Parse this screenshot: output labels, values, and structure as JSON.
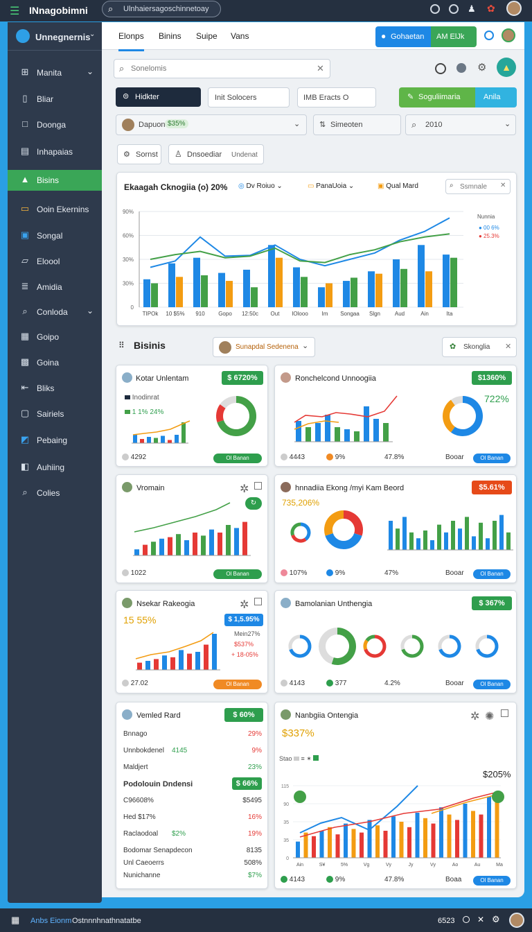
{
  "topbar": {
    "app_name": "INnagobimni",
    "search_value": "Ulnhaiersagoschinnetoay"
  },
  "sidebar": {
    "brand": "Unnegnernis",
    "items": [
      {
        "label": "Manita"
      },
      {
        "label": "Bliar"
      },
      {
        "label": "Doonga"
      },
      {
        "label": "Inhapaias"
      },
      {
        "label": "Bisins"
      },
      {
        "label": "Ooin Ekernins"
      },
      {
        "label": "Songal"
      },
      {
        "label": "Eloool"
      },
      {
        "label": "Amidia"
      },
      {
        "label": "Conloda"
      },
      {
        "label": "Goipo"
      },
      {
        "label": "Goina"
      },
      {
        "label": "Bliks"
      },
      {
        "label": "Sairiels"
      },
      {
        "label": "Pebaing"
      },
      {
        "label": "Auhiing"
      },
      {
        "label": "Colies"
      }
    ]
  },
  "tabs": [
    "Elonps",
    "Binins",
    "Suipe",
    "Vans"
  ],
  "header_buttons": {
    "primary": "Gohaetan",
    "secondary": "AM ElJk"
  },
  "search": {
    "placeholder": "Sonelomis"
  },
  "filters": {
    "dark_btn": "Hidkter",
    "input1": "Init Solocers",
    "input2": "IMB Eracts O",
    "green_btn": "Soguliimaria",
    "teal_btn": "Anila",
    "select1": "Dapuon",
    "select1_badge": "$35%",
    "select2": "Simeoten",
    "select3": "2010"
  },
  "chips": [
    "Sornst",
    "Dnsoediar",
    "Undenat"
  ],
  "main_chart": {
    "title": "Ekaagah Cknogiia (o) 20%",
    "dd1": "Dv Roiuo",
    "dd2": "PanaUoia",
    "dd3": "Qual Mard",
    "search": "Ssmnale",
    "legend_title": "Nunnia",
    "legend": [
      "00 6%",
      "25.3%"
    ],
    "categories": [
      "TIPOk",
      "10 $5%",
      "910",
      "Gopo",
      "12:50c",
      "Out",
      "IOlooo",
      "Im",
      "Songaa",
      "Slgn",
      "Aud",
      "Ain",
      "Ita"
    ],
    "ytick_labels": [
      "90%",
      "60%",
      "30%",
      "30%",
      "0"
    ]
  },
  "section": {
    "title": "Bisinis",
    "select": "Sunapdal Sedenena",
    "search": "Skonglia"
  },
  "cards": {
    "c1": {
      "title": "Kotar Unlentam",
      "badge": "$ 6720%",
      "legend": [
        "Inodinrat",
        "1 1% 24%"
      ],
      "f1": "4292",
      "f2": "Ol Banan"
    },
    "c2": {
      "title": "Ronchelcond Unnoogiia",
      "badge": "$1360%",
      "pct": "722%",
      "f1": "4443",
      "f2": "9%",
      "f3": "47.8%",
      "f4": "Booar",
      "f5": "Ol Banan"
    },
    "c3": {
      "title": "Vromain",
      "f1": "1022",
      "f2": "Ol Banan"
    },
    "c4": {
      "title": "hnnadiia Ekong /myi Kam Beord",
      "badge": "$5.61%",
      "pct": "735,206%",
      "f1": "107%",
      "f2": "9%",
      "f3": "47%",
      "f4": "Booar",
      "f5": "Ol Banan"
    },
    "c5": {
      "title": "Nsekar Rakeogia",
      "badge": "$ 1,5.95%",
      "pct": "15 55%",
      "legend": [
        "Mein27%",
        "$537%",
        "+ 18-05%"
      ],
      "f1": "27.02",
      "f2": "Ol Banan"
    },
    "c6": {
      "title": "Bamolanian Unthengia",
      "badge": "$ 367%",
      "f1": "4143",
      "f2": "377",
      "f3": "4.2%",
      "f4": "Booar",
      "f5": "Ol Banan"
    },
    "c7": {
      "title": "Vemled Rard",
      "badge": "$ 60%",
      "rows": [
        {
          "l": "Bnnago",
          "v": "29%"
        },
        {
          "l": "Unnbokdenel",
          "m": "4145",
          "v": "9%"
        },
        {
          "l": "Maldjert",
          "v": "23%"
        },
        {
          "l": "Podolouin Dndensi",
          "m": "",
          "v": "$ 66%"
        },
        {
          "l": "C96608%",
          "v": "$5495"
        },
        {
          "l": "Hed $17%",
          "v": "16%"
        },
        {
          "l": "Raclaodoal",
          "m": "$2%",
          "v": "19%"
        },
        {
          "l": "Bodomar Senapdecon",
          "v": "8135"
        },
        {
          "l": "Unl Caeoerrs",
          "v": "508%"
        },
        {
          "l": "Nunichanne",
          "v": "$7%"
        }
      ]
    },
    "c8": {
      "title": "Nanbgiia Ontengia",
      "pct": "$337%",
      "legend_label": "Stao",
      "right_pct": "$205%",
      "f1": "4143",
      "f2": "9%",
      "f3": "47.8%",
      "f4": "Boaa",
      "f5": "Ol Banan"
    }
  },
  "bottom": {
    "left": "Anbs Eionm",
    "left2": "Ostnnnhnathnatatbe",
    "time": "6523"
  },
  "chart_data": [
    {
      "type": "bar",
      "title": "Ekaagah Cknogiia (o) 20%",
      "categories": [
        "TIPOk",
        "10 $5%",
        "910",
        "Gopo",
        "12:50c",
        "Out",
        "IOlooo",
        "Im",
        "Songaa",
        "Slgn",
        "Aud",
        "Ain",
        "Ita"
      ],
      "series": [
        {
          "name": "00 6%",
          "values": [
            35,
            55,
            62,
            43,
            47,
            78,
            50,
            25,
            33,
            45,
            60,
            78,
            66
          ]
        },
        {
          "name": "25.3%",
          "values": [
            30,
            38,
            40,
            33,
            25,
            62,
            38,
            30,
            37,
            42,
            48,
            45,
            62
          ]
        },
        {
          "name": "Line",
          "values": [
            50,
            58,
            88,
            64,
            65,
            78,
            60,
            52,
            60,
            68,
            84,
            95,
            112
          ]
        }
      ]
    }
  ],
  "colors": {
    "topbar": "#253040",
    "sidebar": "#2e3a4c",
    "accent_blue": "#1e88e5",
    "accent_green": "#43a047",
    "accent_orange": "#f39c12",
    "accent_red": "#e53935"
  }
}
